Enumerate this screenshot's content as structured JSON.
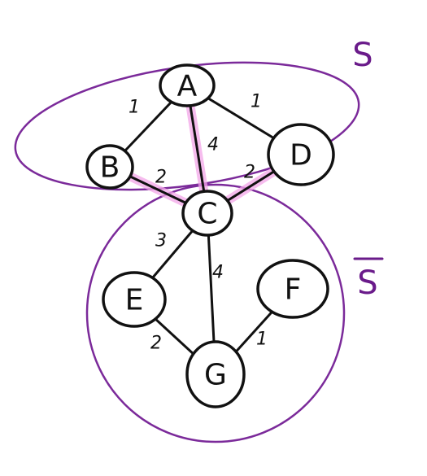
{
  "colors": {
    "region": "#7b2a9a",
    "highlight": "#f3a6e8",
    "ink": "#111111",
    "label": "#6a1b8a"
  },
  "sets": {
    "s_label": "S",
    "s_bar_label": "S"
  },
  "nodes": [
    {
      "id": "A",
      "label": "A"
    },
    {
      "id": "B",
      "label": "B"
    },
    {
      "id": "C",
      "label": "C"
    },
    {
      "id": "D",
      "label": "D"
    },
    {
      "id": "E",
      "label": "E"
    },
    {
      "id": "F",
      "label": "F"
    },
    {
      "id": "G",
      "label": "G"
    }
  ],
  "edges": [
    {
      "from": "A",
      "to": "B",
      "weight": "1",
      "highlighted": false
    },
    {
      "from": "A",
      "to": "D",
      "weight": "1",
      "highlighted": false
    },
    {
      "from": "A",
      "to": "C",
      "weight": "4",
      "highlighted": true
    },
    {
      "from": "B",
      "to": "C",
      "weight": "2",
      "highlighted": true
    },
    {
      "from": "D",
      "to": "C",
      "weight": "2",
      "highlighted": true
    },
    {
      "from": "C",
      "to": "E",
      "weight": "3",
      "highlighted": false
    },
    {
      "from": "C",
      "to": "G",
      "weight": "4",
      "highlighted": false
    },
    {
      "from": "E",
      "to": "G",
      "weight": "2",
      "highlighted": false
    },
    {
      "from": "F",
      "to": "G",
      "weight": "1",
      "highlighted": false
    }
  ]
}
